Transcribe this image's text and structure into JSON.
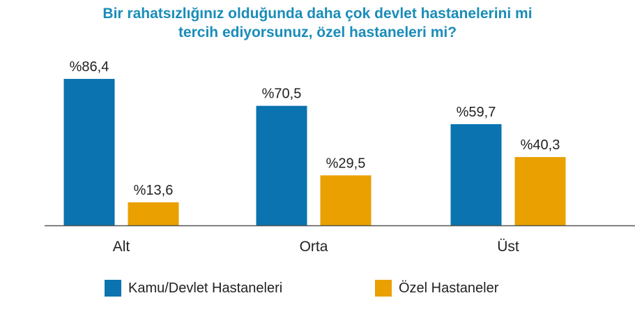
{
  "chart_data": {
    "type": "bar",
    "title": "Bir rahatsızlığınız olduğunda daha çok devlet hastanelerini mi tercih ediyorsunuz, özel hastaneleri mi?",
    "title_lines": [
      "Bir rahatsızlığınız olduğunda daha çok devlet hastanelerini mi",
      "tercih ediyorsunuz, özel hastaneleri mi?"
    ],
    "categories": [
      "Alt",
      "Orta",
      "Üst"
    ],
    "series": [
      {
        "name": "Kamu/Devlet Hastaneleri",
        "color": "#0a73b0",
        "values": [
          86.4,
          70.5,
          59.7
        ],
        "labels": [
          "%86,4",
          "%70,5",
          "%59,7"
        ]
      },
      {
        "name": "Özel Hastaneler",
        "color": "#e9a000",
        "values": [
          13.6,
          29.5,
          40.3
        ],
        "labels": [
          "%13,6",
          "%29,5",
          "%40,3"
        ]
      }
    ],
    "ylim": [
      0,
      100
    ],
    "grid": false,
    "legend_position": "bottom",
    "title_color": "#1a8cb8"
  }
}
